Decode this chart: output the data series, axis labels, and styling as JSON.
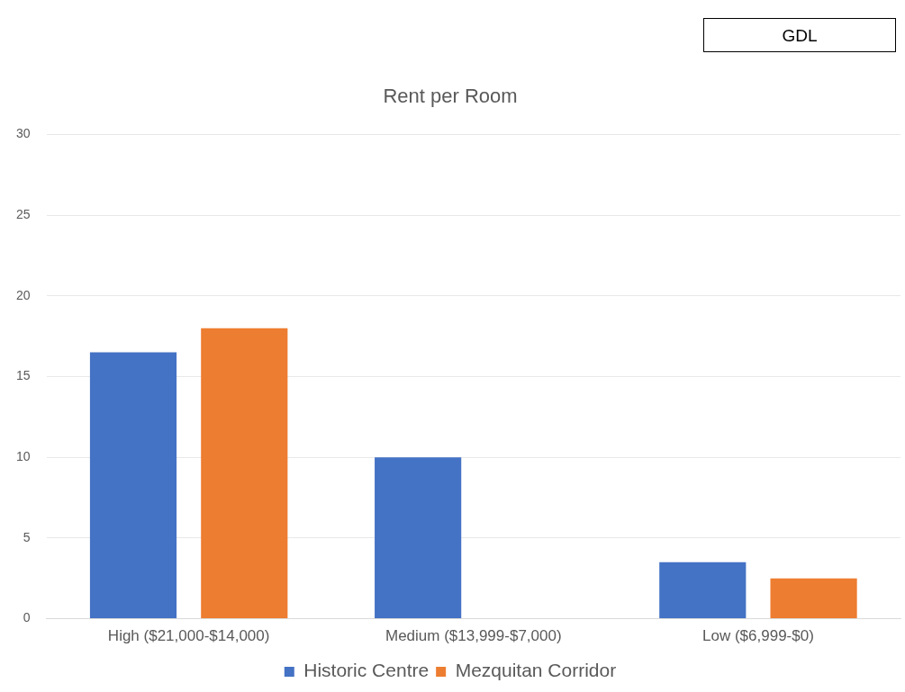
{
  "chart_data": {
    "type": "bar",
    "title": "Rent per Room",
    "categories": [
      "High ($21,000-$14,000)",
      "Medium ($13,999-$7,000)",
      "Low ($6,999-$0)"
    ],
    "series": [
      {
        "name": "Historic Centre",
        "color": "#4472c4",
        "values": [
          16.5,
          10,
          3.5
        ]
      },
      {
        "name": "Mezquitan Corridor",
        "color": "#ed7d31",
        "values": [
          18,
          null,
          2.5
        ]
      }
    ],
    "ylim": [
      0,
      30
    ],
    "yticks": [
      0,
      5,
      10,
      15,
      20,
      25,
      30
    ],
    "grid": "y",
    "legend": "bottom",
    "annotations": [
      "GDL"
    ]
  }
}
